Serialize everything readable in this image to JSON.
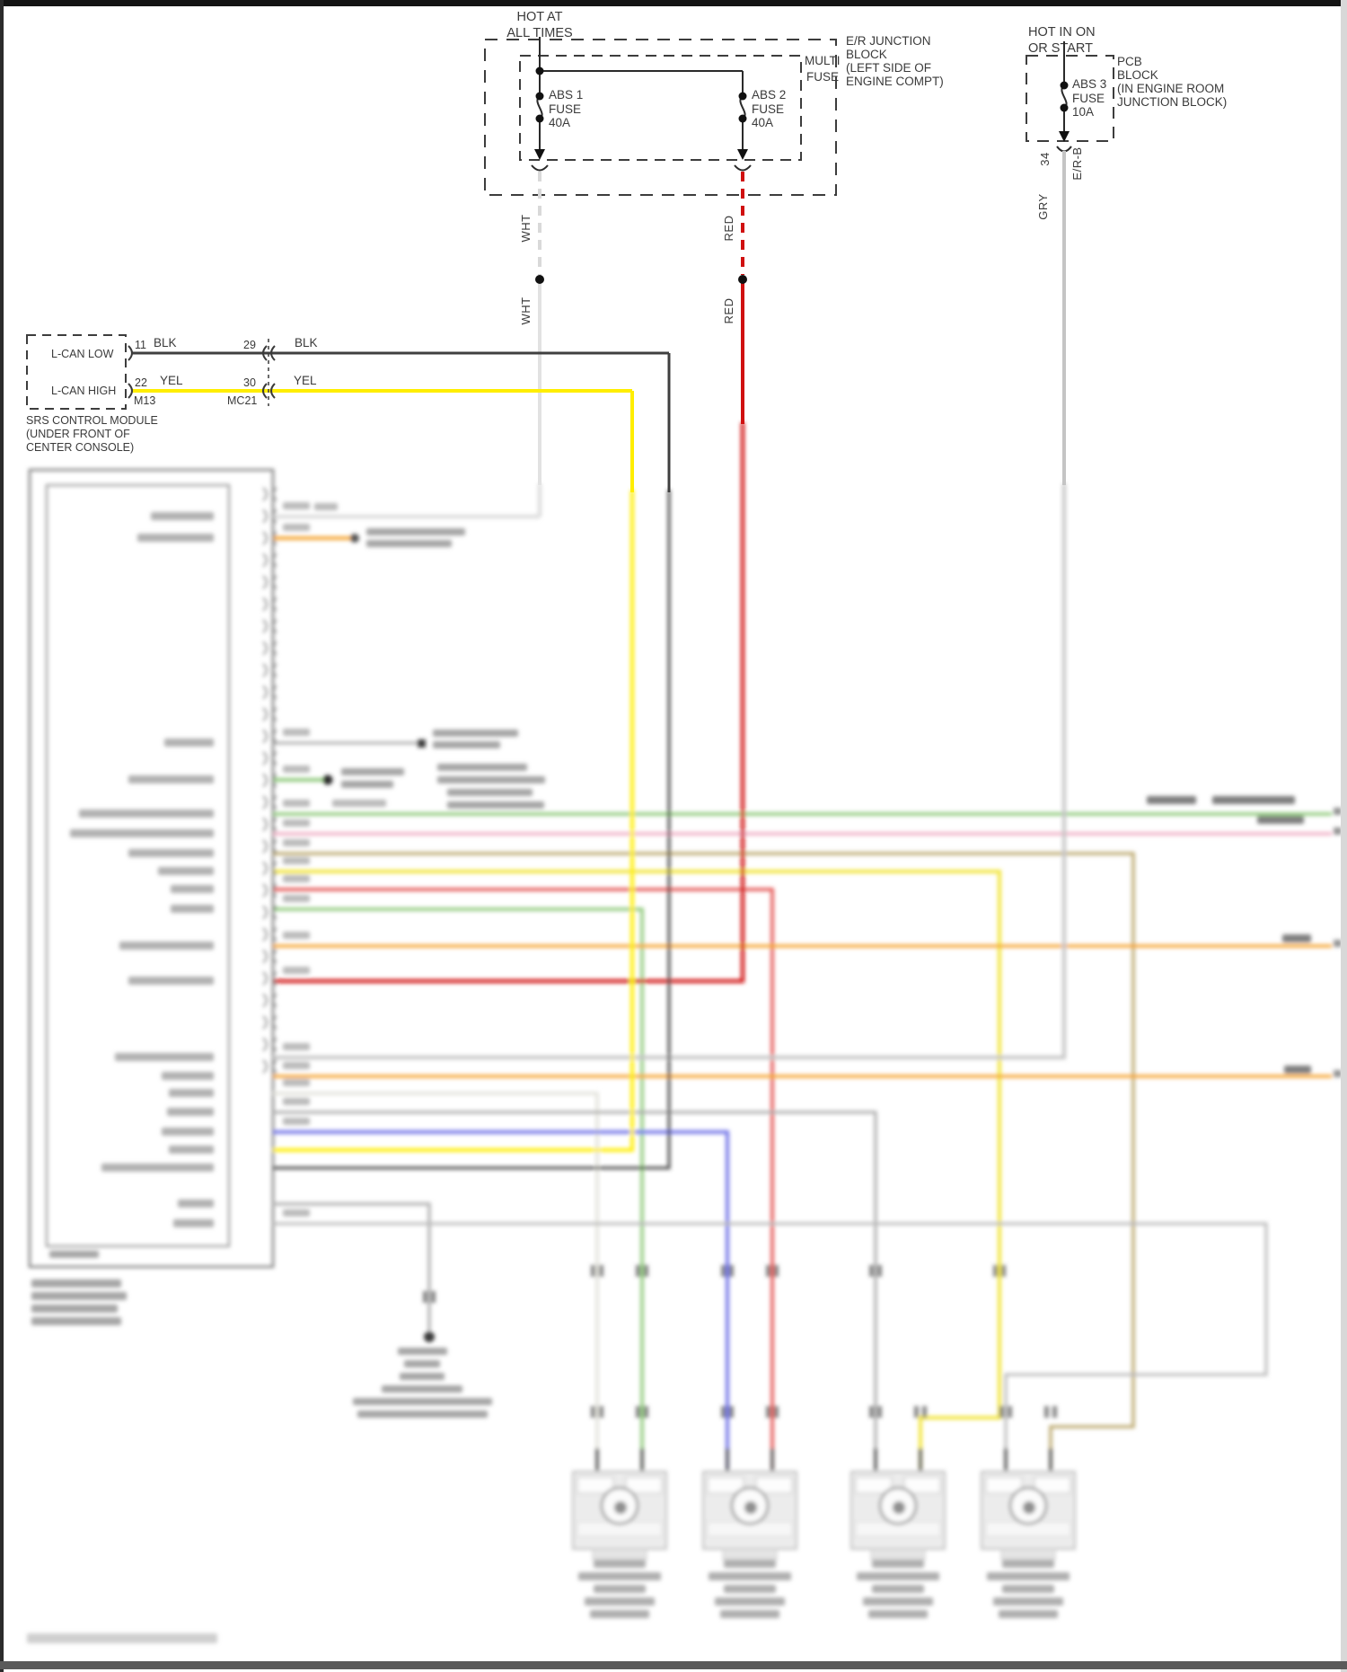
{
  "power": {
    "hot_at_all_times_1": "HOT AT",
    "hot_at_all_times_2": "ALL TIMES",
    "hot_in_on_1": "HOT IN ON",
    "hot_in_on_2": "OR START"
  },
  "er_junction_block": {
    "label_1": "E/R JUNCTION",
    "label_2": "BLOCK",
    "label_3": "(LEFT SIDE OF",
    "label_4": "ENGINE COMPT)",
    "multi_fuse_1": "MULTI",
    "multi_fuse_2": "FUSE",
    "abs1_fuse_1": "ABS 1",
    "abs1_fuse_2": "FUSE",
    "abs1_fuse_3": "40A",
    "abs2_fuse_1": "ABS 2",
    "abs2_fuse_2": "FUSE",
    "abs2_fuse_3": "40A"
  },
  "pcb_block": {
    "label_1": "PCB",
    "label_2": "BLOCK",
    "label_3": "(IN ENGINE ROOM",
    "label_4": "JUNCTION BLOCK)",
    "abs3_fuse_1": "ABS 3",
    "abs3_fuse_2": "FUSE",
    "abs3_fuse_3": "10A",
    "connector_pin": "34",
    "connector_name": "E/R-B"
  },
  "wire_labels": {
    "wht": "WHT",
    "red": "RED",
    "gry": "GRY",
    "blk": "BLK",
    "yel": "YEL"
  },
  "wire_colors": {
    "white": "#d9d9d9",
    "red": "#d01010",
    "gray": "#c4c4c4",
    "black": "#3f3f3f",
    "yellow": "#ffee00",
    "green": "#8cc878",
    "pink": "#efaec4",
    "tan": "#bdaa72",
    "soft_yellow": "#f2e53e",
    "soft_red": "#e4514f",
    "orange": "#f5a430",
    "blue": "#7678e8"
  },
  "srs_module": {
    "lcan_low": "L-CAN LOW",
    "lcan_high": "L-CAN HIGH",
    "pin_11": "11",
    "pin_22": "22",
    "pin_29": "29",
    "pin_30": "30",
    "connector_m13": "M13",
    "connector_mc21": "MC21",
    "caption_1": "SRS CONTROL MODULE",
    "caption_2": "(UNDER FRONT OF",
    "caption_3": "CENTER CONSOLE)"
  }
}
